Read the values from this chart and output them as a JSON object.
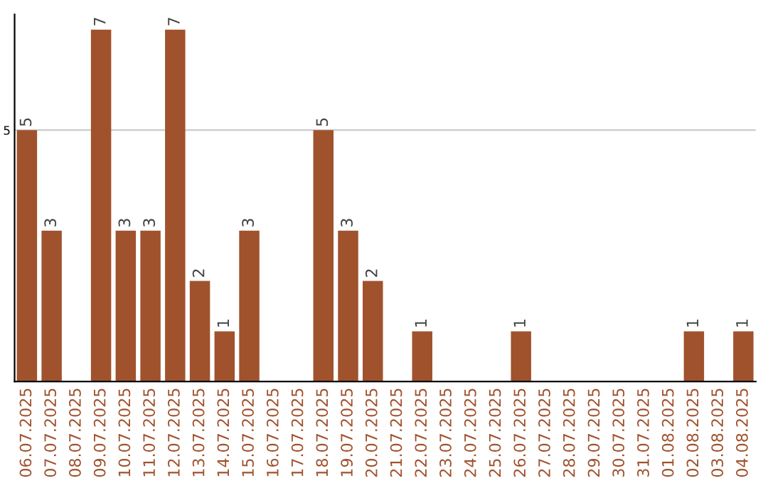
{
  "chart_data": {
    "type": "bar",
    "categories": [
      "06.07.2025",
      "07.07.2025",
      "08.07.2025",
      "09.07.2025",
      "10.07.2025",
      "11.07.2025",
      "12.07.2025",
      "13.07.2025",
      "14.07.2025",
      "15.07.2025",
      "16.07.2025",
      "17.07.2025",
      "18.07.2025",
      "19.07.2025",
      "20.07.2025",
      "21.07.2025",
      "22.07.2025",
      "23.07.2025",
      "24.07.2025",
      "25.07.2025",
      "26.07.2025",
      "27.07.2025",
      "28.07.2025",
      "29.07.2025",
      "30.07.2025",
      "31.07.2025",
      "01.08.2025",
      "02.08.2025",
      "03.08.2025",
      "04.08.2025"
    ],
    "values": [
      5,
      3,
      0,
      7,
      3,
      3,
      7,
      2,
      1,
      3,
      0,
      0,
      5,
      3,
      2,
      0,
      1,
      0,
      0,
      0,
      1,
      0,
      0,
      0,
      0,
      0,
      0,
      1,
      0,
      1
    ],
    "value_labels": [
      "5",
      "3",
      null,
      "7",
      "3",
      "3",
      "7",
      "2",
      "1",
      "3",
      null,
      null,
      "5",
      "3",
      "2",
      null,
      "1",
      null,
      null,
      null,
      "1",
      null,
      null,
      null,
      null,
      null,
      null,
      "1",
      null,
      "1"
    ],
    "color": "#a0522d",
    "ylim": [
      0,
      7.3
    ],
    "yticks": [
      5
    ],
    "grid": "y"
  }
}
